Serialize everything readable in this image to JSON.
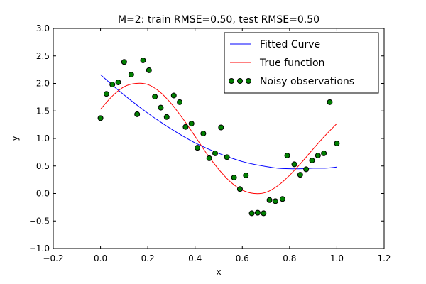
{
  "chart_data": {
    "type": "scatter",
    "title": "M=2: train RMSE=0.50, test RMSE=0.50",
    "xlabel": "x",
    "ylabel": "y",
    "xlim": [
      -0.2,
      1.2
    ],
    "ylim": [
      -1.0,
      3.0
    ],
    "xticks": [
      -0.2,
      0.0,
      0.2,
      0.4,
      0.6,
      0.8,
      1.0,
      1.2
    ],
    "yticks": [
      -1.0,
      -0.5,
      0.0,
      0.5,
      1.0,
      1.5,
      2.0,
      2.5,
      3.0
    ],
    "xtick_labels": [
      "−0.2",
      "0.0",
      "0.2",
      "0.4",
      "0.6",
      "0.8",
      "1.0",
      "1.2"
    ],
    "ytick_labels": [
      "−1.0",
      "−0.5",
      "0.0",
      "0.5",
      "1.0",
      "1.5",
      "2.0",
      "2.5",
      "3.0"
    ],
    "legend_position": "top-right",
    "grid": false,
    "series": [
      {
        "name": "Fitted Curve",
        "kind": "line",
        "color": "#0000ff",
        "x": [
          0.0,
          0.05,
          0.1,
          0.15,
          0.2,
          0.25,
          0.3,
          0.35,
          0.4,
          0.45,
          0.5,
          0.55,
          0.6,
          0.65,
          0.7,
          0.75,
          0.8,
          0.85,
          0.9,
          0.95,
          1.0
        ],
        "y": [
          2.16,
          1.97,
          1.79,
          1.62,
          1.46,
          1.31,
          1.17,
          1.04,
          0.92,
          0.82,
          0.73,
          0.65,
          0.58,
          0.53,
          0.49,
          0.46,
          0.45,
          0.45,
          0.46,
          0.46,
          0.48
        ]
      },
      {
        "name": "True function",
        "kind": "line",
        "color": "#ff0000",
        "x": [
          0.0,
          0.05,
          0.1,
          0.15,
          0.2,
          0.25,
          0.3,
          0.35,
          0.4,
          0.45,
          0.5,
          0.55,
          0.6,
          0.65,
          0.7,
          0.75,
          0.8,
          0.85,
          0.9,
          0.95,
          1.0
        ],
        "y": [
          1.53,
          1.77,
          1.94,
          2.0,
          1.98,
          1.85,
          1.63,
          1.35,
          1.04,
          0.72,
          0.44,
          0.21,
          0.06,
          0.0,
          0.02,
          0.14,
          0.33,
          0.56,
          0.81,
          1.05,
          1.27
        ]
      },
      {
        "name": "Noisy observations",
        "kind": "scatter",
        "color": "#008000",
        "x": [
          0.0,
          0.025,
          0.05,
          0.075,
          0.1,
          0.13,
          0.155,
          0.18,
          0.205,
          0.23,
          0.255,
          0.28,
          0.31,
          0.335,
          0.36,
          0.385,
          0.41,
          0.435,
          0.46,
          0.485,
          0.51,
          0.535,
          0.565,
          0.59,
          0.615,
          0.64,
          0.665,
          0.69,
          0.715,
          0.74,
          0.77,
          0.79,
          0.82,
          0.845,
          0.87,
          0.895,
          0.92,
          0.945,
          0.97,
          1.0
        ],
        "y": [
          1.37,
          1.81,
          1.98,
          2.02,
          2.39,
          2.16,
          1.44,
          2.42,
          2.24,
          1.76,
          1.56,
          1.39,
          1.78,
          1.66,
          1.21,
          1.27,
          0.83,
          1.09,
          0.64,
          0.73,
          1.2,
          0.66,
          0.29,
          0.08,
          0.33,
          -0.36,
          -0.35,
          -0.36,
          -0.12,
          -0.14,
          -0.1,
          0.69,
          0.53,
          0.34,
          0.44,
          0.6,
          0.69,
          0.73,
          1.66,
          0.91
        ]
      }
    ]
  }
}
